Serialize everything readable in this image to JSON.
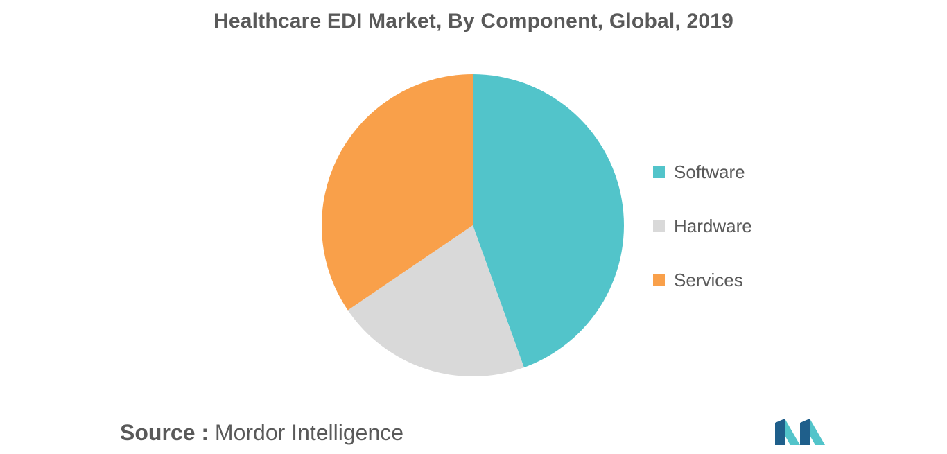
{
  "chart_data": {
    "type": "pie",
    "title": "Healthcare EDI Market, By Component, Global, 2019",
    "categories": [
      "Software",
      "Hardware",
      "Services"
    ],
    "values": [
      44.5,
      21.0,
      34.5
    ],
    "legend": "right",
    "colors": [
      "#52c4ca",
      "#d9d9d9",
      "#f9a04a"
    ]
  },
  "source": {
    "prefix": "Source :",
    "name": "Mordor Intelligence"
  },
  "logo": {
    "icon": "mordor-intelligence-logo",
    "colors": [
      "#1f5f8b",
      "#52c4ca"
    ]
  }
}
